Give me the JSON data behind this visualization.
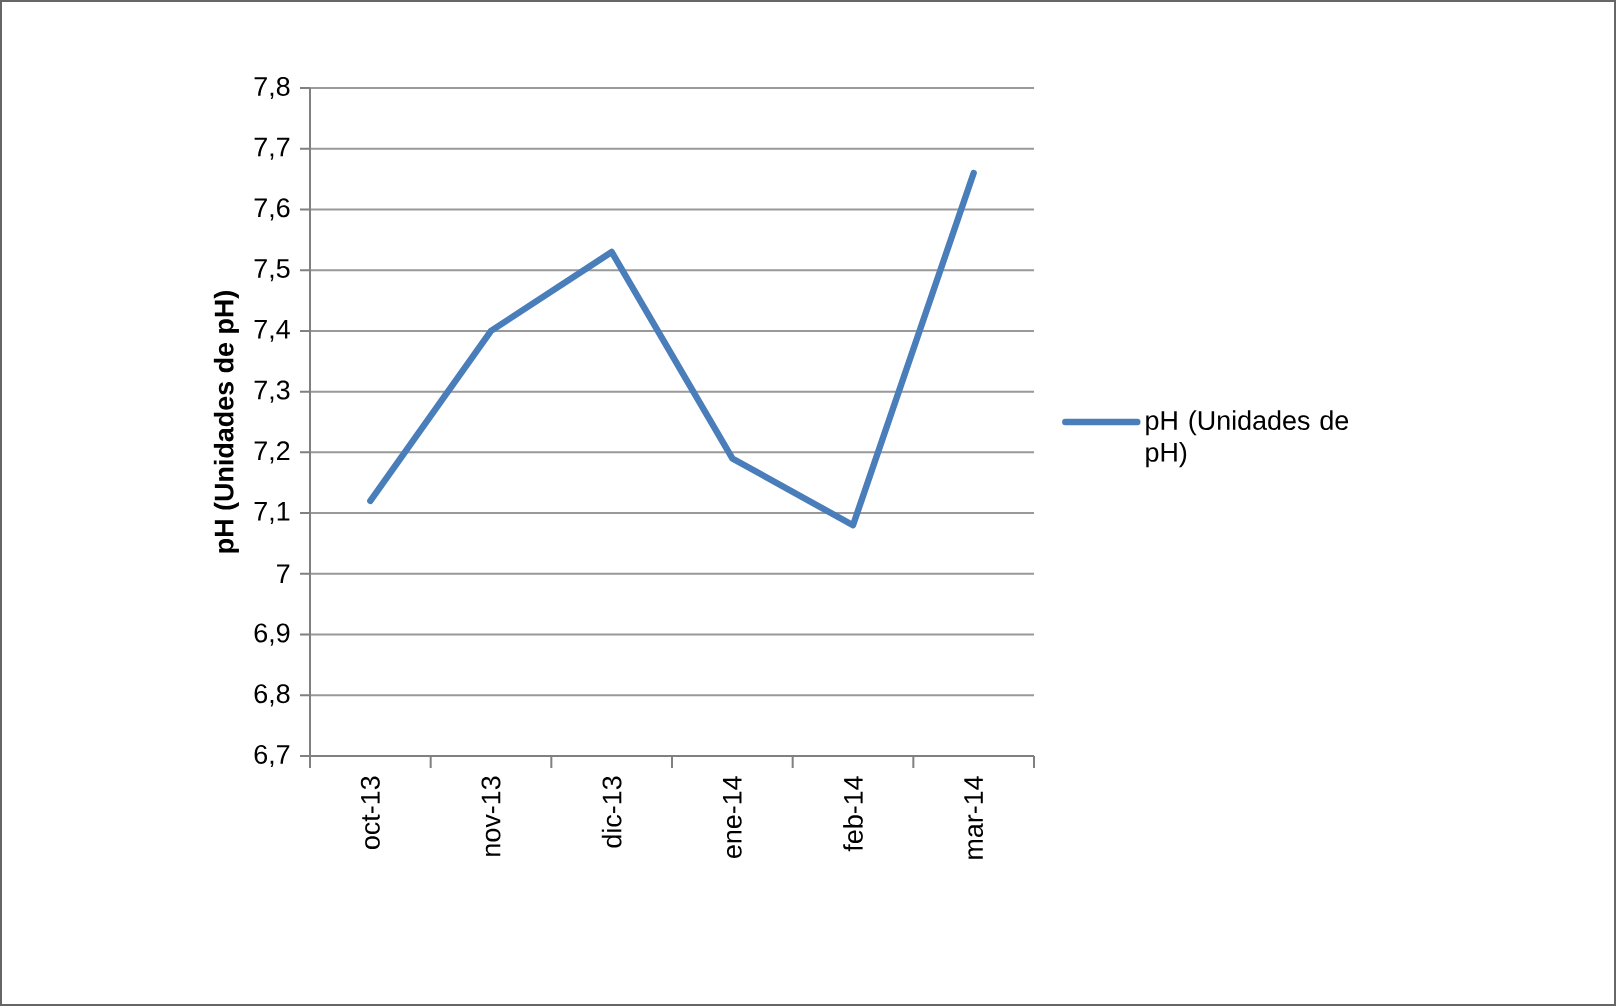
{
  "chart_data": {
    "type": "line",
    "ylabel": "pH (Unidades de pH)",
    "categories": [
      "oct-13",
      "nov-13",
      "dic-13",
      "ene-14",
      "feb-14",
      "mar-14"
    ],
    "series": [
      {
        "name": "pH (Unidades de pH)",
        "color": "#4a7ebb",
        "values": [
          7.12,
          7.4,
          7.53,
          7.19,
          7.08,
          7.66
        ]
      }
    ],
    "ylim": [
      6.7,
      7.8
    ],
    "yticks": [
      {
        "value": 6.7,
        "label": "6,7"
      },
      {
        "value": 6.8,
        "label": "6,8"
      },
      {
        "value": 6.9,
        "label": "6,9"
      },
      7,
      {
        "value": 7.1,
        "label": "7,1"
      },
      {
        "value": 7.2,
        "label": "7,2"
      },
      {
        "value": 7.3,
        "label": "7,3"
      },
      {
        "value": 7.4,
        "label": "7,4"
      },
      {
        "value": 7.5,
        "label": "7,5"
      },
      {
        "value": 7.6,
        "label": "7,6"
      },
      {
        "value": 7.7,
        "label": "7,7"
      },
      {
        "value": 7.8,
        "label": "7,8"
      }
    ],
    "grid": "y",
    "legend": "right",
    "marker": "none",
    "line_style": "solid"
  }
}
